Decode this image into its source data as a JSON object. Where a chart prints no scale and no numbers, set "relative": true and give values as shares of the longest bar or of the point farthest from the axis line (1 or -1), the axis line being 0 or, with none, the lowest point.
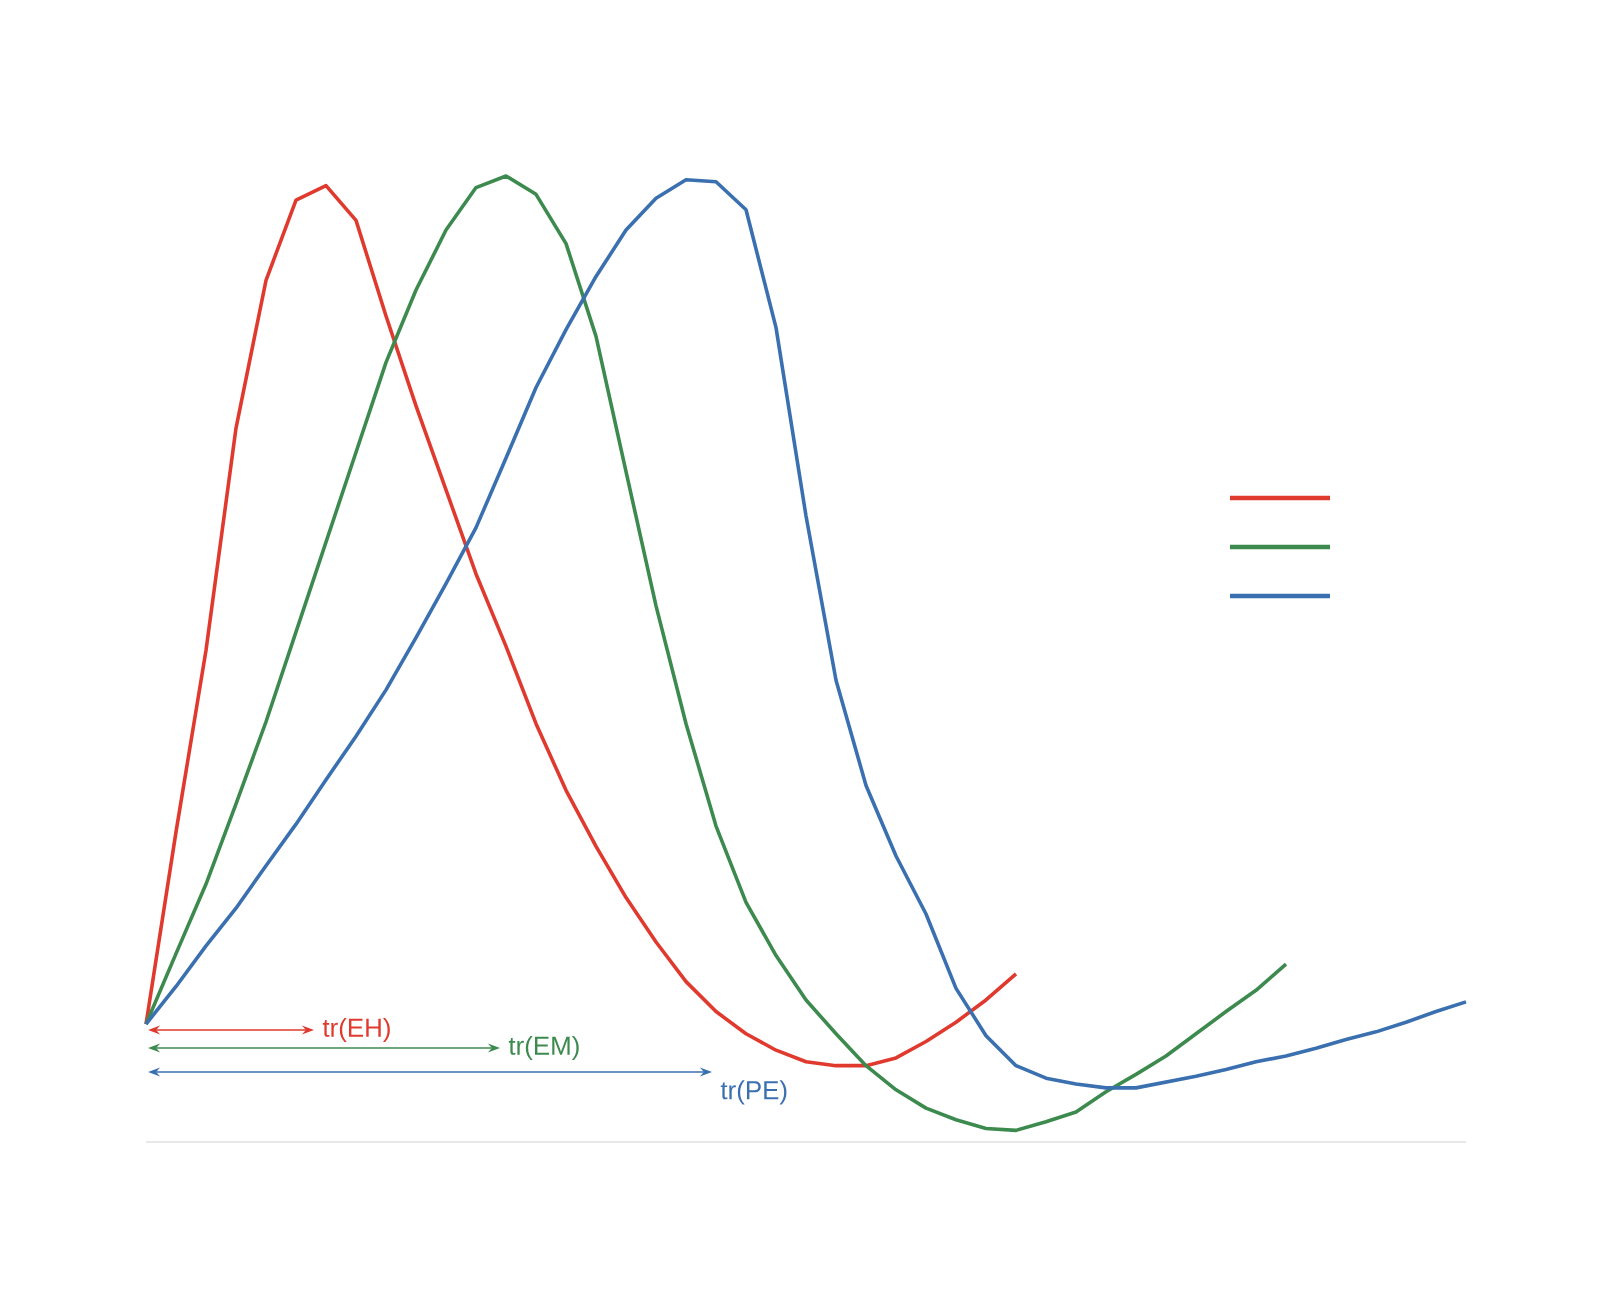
{
  "chart_data": {
    "type": "line",
    "relative": true,
    "categories": [
      null,
      null,
      null,
      null,
      null,
      null,
      null,
      null,
      null,
      null,
      null,
      null,
      null,
      null,
      null,
      null,
      null,
      null,
      null,
      null,
      null,
      null,
      null,
      null,
      null,
      null,
      null,
      null,
      null,
      null,
      null,
      null,
      null,
      null,
      null,
      null,
      null,
      null,
      null,
      null,
      null,
      null,
      null,
      null,
      null
    ],
    "series": [
      {
        "color": "#e03a2f",
        "values": [
          0.122,
          0.321,
          0.509,
          0.739,
          0.892,
          0.975,
          0.99,
          0.954,
          0.855,
          0.762,
          0.675,
          0.588,
          0.513,
          0.433,
          0.364,
          0.306,
          0.253,
          0.207,
          0.166,
          0.135,
          0.112,
          0.095,
          0.083,
          0.079,
          0.079,
          0.087,
          0.104,
          0.124,
          0.147,
          0.174,
          null,
          null,
          null,
          null,
          null,
          null,
          null,
          null,
          null,
          null,
          null,
          null,
          null,
          null,
          null
        ]
      },
      {
        "color": "#3d8a4f",
        "values": [
          0.122,
          0.195,
          0.267,
          0.35,
          0.435,
          0.528,
          0.621,
          0.714,
          0.807,
          0.882,
          0.944,
          0.988,
          1,
          0.981,
          0.93,
          0.834,
          0.694,
          0.555,
          0.433,
          0.327,
          0.248,
          0.193,
          0.147,
          0.112,
          0.079,
          0.054,
          0.035,
          0.023,
          0.014,
          0.012,
          0.021,
          0.031,
          0.052,
          0.07,
          0.089,
          0.112,
          0.135,
          0.157,
          0.184,
          null,
          null,
          null,
          null,
          null,
          null
        ]
      },
      {
        "color": "#3a6fb0",
        "values": [
          0.122,
          0.161,
          0.203,
          0.242,
          0.286,
          0.329,
          0.375,
          0.42,
          0.468,
          0.522,
          0.578,
          0.636,
          0.708,
          0.781,
          0.841,
          0.896,
          0.944,
          0.977,
          0.996,
          0.994,
          0.965,
          0.843,
          0.648,
          0.478,
          0.369,
          0.296,
          0.236,
          0.159,
          0.11,
          0.079,
          0.066,
          0.06,
          0.056,
          0.056,
          0.062,
          0.068,
          0.075,
          0.083,
          0.089,
          0.097,
          0.106,
          0.114,
          0.124,
          0.135,
          0.145
        ]
      }
    ],
    "annotations": [
      "tr(EH)",
      "tr(EM)",
      "tr(PE)"
    ]
  }
}
